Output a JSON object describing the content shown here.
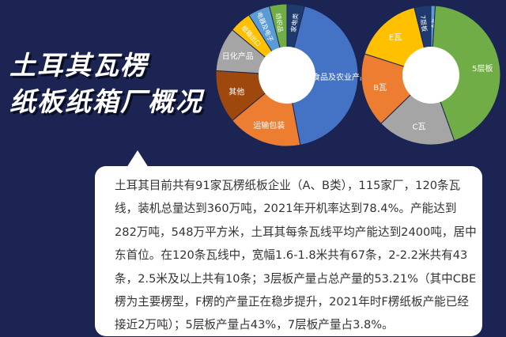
{
  "title": {
    "line1": "土耳其瓦楞",
    "line2": "纸板纸箱厂概况"
  },
  "chart_data": [
    {
      "type": "pie",
      "donut": true,
      "categories": [
        "家电类",
        "食品及农业产品",
        "运输包装",
        "其他",
        "日化产品",
        "纸箱出口",
        "电器及电子",
        "纺织品"
      ],
      "values": [
        4,
        43,
        17,
        12,
        10,
        5,
        5,
        4
      ],
      "colors": [
        "#1f3a6e",
        "#4472c4",
        "#ed7d31",
        "#9e480e",
        "#a5a5a5",
        "#ffc000",
        "#5b9bd5",
        "#70ad47"
      ]
    },
    {
      "type": "pie",
      "donut": true,
      "categories": [
        "A瓦",
        "5层板",
        "C瓦",
        "B瓦",
        "E瓦",
        "7层板"
      ],
      "values": [
        1,
        43,
        18,
        17,
        16,
        3.8
      ],
      "colors": [
        "#5b9bd5",
        "#70ad47",
        "#a5a5a5",
        "#ed7d31",
        "#ffc000",
        "#1f3a6e"
      ]
    }
  ],
  "description": "土耳其目前共有91家瓦楞纸板企业（A、B类），115家厂，120条瓦线，装机总量达到360万吨，2021年开机率达到78.4%。产能达到282万吨，548万平方米，土耳其每条瓦线平均产能达到2400吨，居中东首位。在120条瓦线中，宽幅1.6-1.8米共有67条，2-2.2米共有43条，2.5米及以上共有10条；3层板产量占总产量的53.21%（其中CBE楞为主要楞型，F楞的产量正在稳步提升，2021年时F楞纸板产能已经接近2万吨）；5层板产量占43%，7层板产量占3.8%。"
}
